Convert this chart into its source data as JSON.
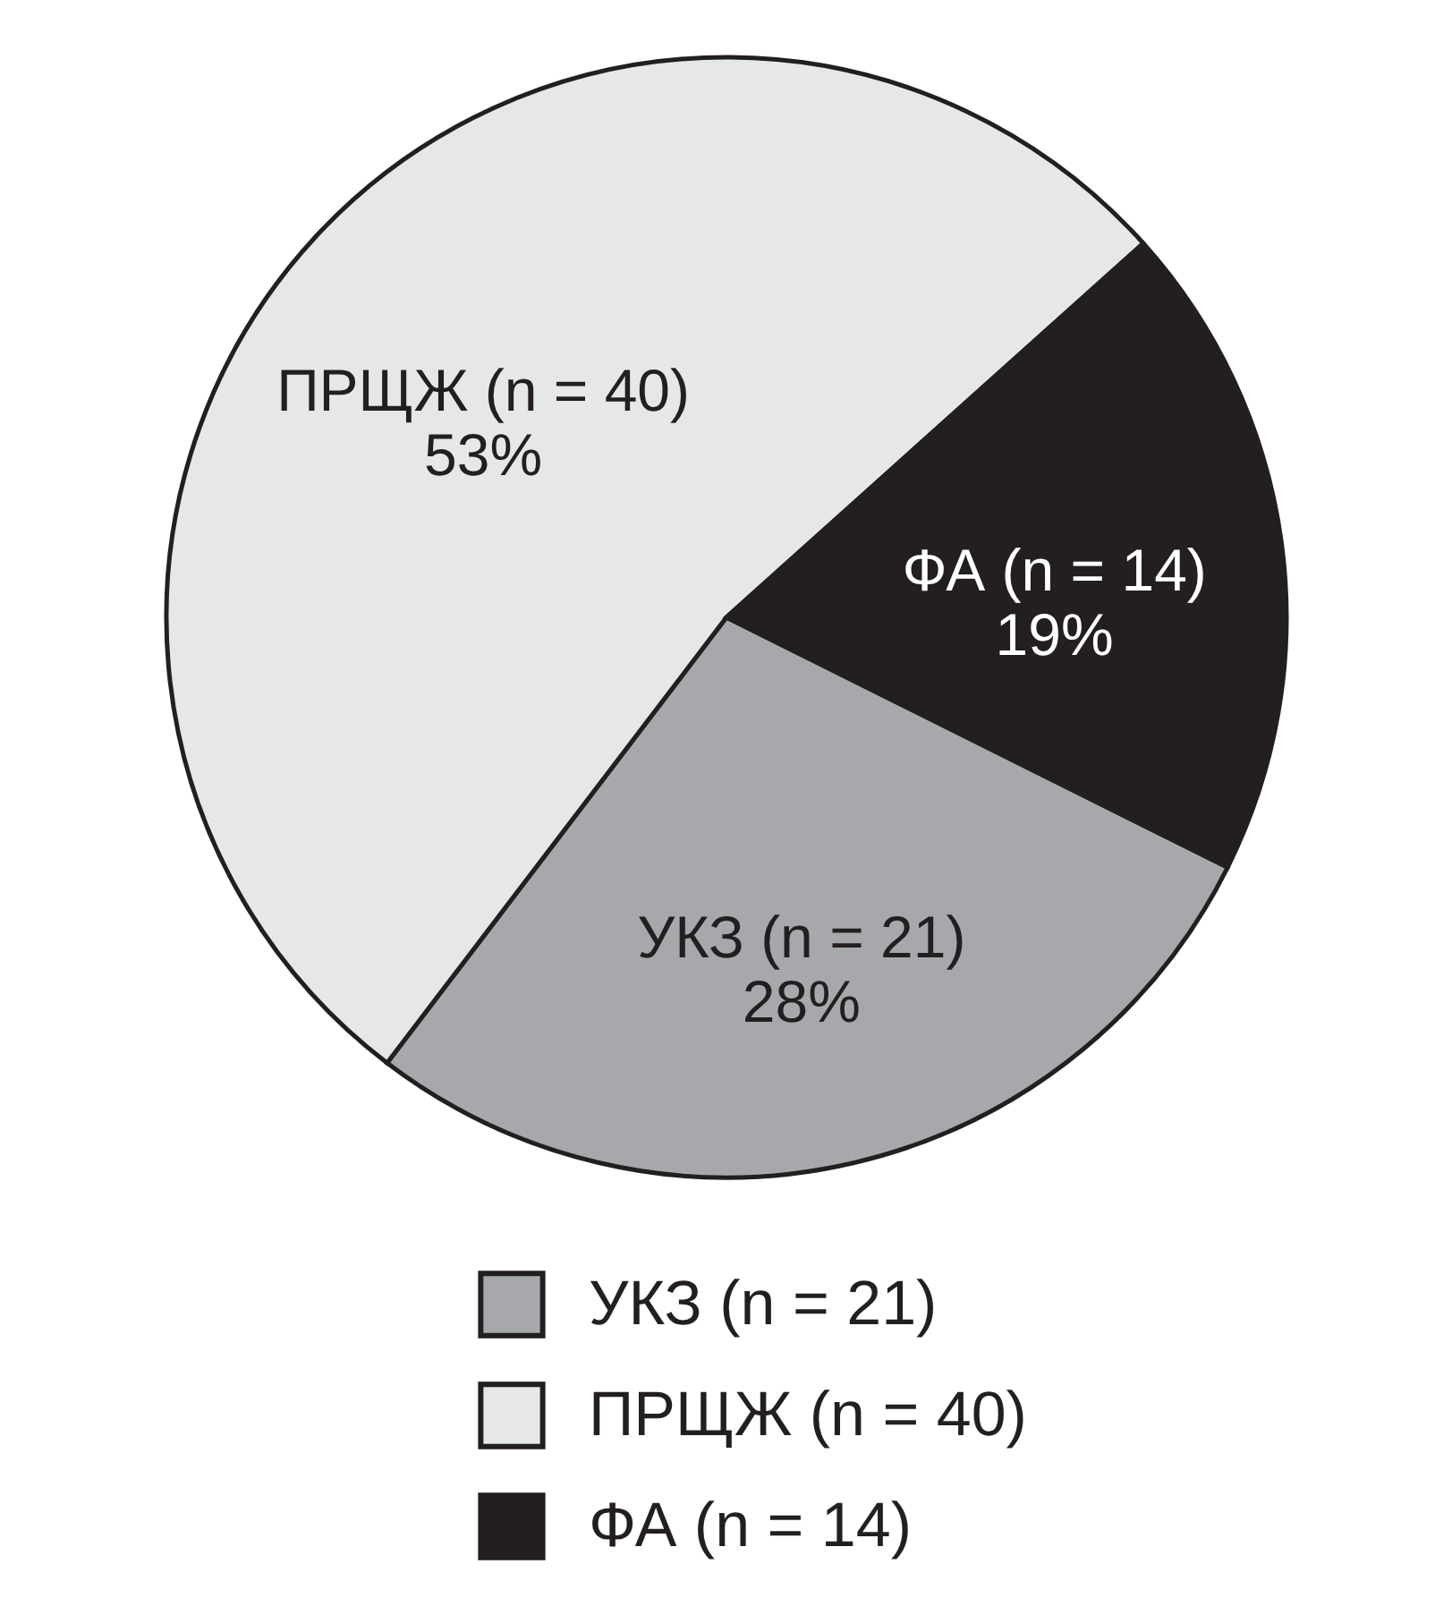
{
  "chart_data": {
    "type": "pie",
    "categories": [
      "УКЗ (n = 21)",
      "ПРЩЖ (n = 40)",
      "ФА (n = 14)"
    ],
    "values": [
      28,
      53,
      19
    ],
    "value_labels": [
      "28%",
      "53%",
      "19%"
    ],
    "colors": [
      "#a7a8ab",
      "#e6e7e8",
      "#231f20"
    ],
    "legend": "bottom"
  }
}
